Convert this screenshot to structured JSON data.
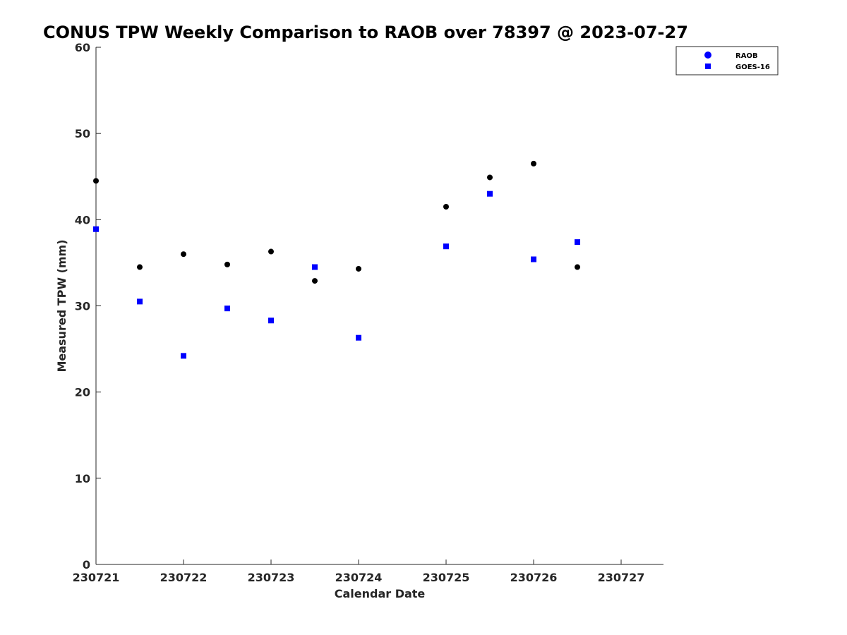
{
  "chart_data": {
    "type": "scatter",
    "title": "CONUS TPW Weekly Comparison to RAOB over 78397 @ 2023-07-27",
    "xlabel": "Calendar Date",
    "ylabel": "Measured TPW (mm)",
    "x_tick_labels": [
      "230721",
      "230722",
      "230723",
      "230724",
      "230725",
      "230726",
      "230727"
    ],
    "y_ticks": [
      0,
      10,
      20,
      30,
      40,
      50,
      60
    ],
    "xlim": [
      0,
      6.5
    ],
    "ylim": [
      0,
      60
    ],
    "grid": false,
    "legend_position": "top-right",
    "series": [
      {
        "name": "RAOB",
        "marker": "circle",
        "legend_color": "#0000ff",
        "color": "#000000",
        "points": [
          {
            "x": 0.0,
            "y": 44.5
          },
          {
            "x": 0.5,
            "y": 34.5
          },
          {
            "x": 1.0,
            "y": 36.0
          },
          {
            "x": 1.5,
            "y": 34.8
          },
          {
            "x": 2.0,
            "y": 36.3
          },
          {
            "x": 2.5,
            "y": 32.9
          },
          {
            "x": 3.0,
            "y": 34.3
          },
          {
            "x": 4.0,
            "y": 41.5
          },
          {
            "x": 4.5,
            "y": 44.9
          },
          {
            "x": 5.0,
            "y": 46.5
          },
          {
            "x": 5.5,
            "y": 34.5
          }
        ]
      },
      {
        "name": "GOES-16",
        "marker": "square",
        "legend_color": "#0000ff",
        "color": "#0000ff",
        "points": [
          {
            "x": 0.0,
            "y": 38.9
          },
          {
            "x": 0.5,
            "y": 30.5
          },
          {
            "x": 1.0,
            "y": 24.2
          },
          {
            "x": 1.5,
            "y": 29.7
          },
          {
            "x": 2.0,
            "y": 28.3
          },
          {
            "x": 2.5,
            "y": 34.5
          },
          {
            "x": 3.0,
            "y": 26.3
          },
          {
            "x": 4.0,
            "y": 36.9
          },
          {
            "x": 4.5,
            "y": 43.0
          },
          {
            "x": 5.0,
            "y": 35.4
          },
          {
            "x": 5.5,
            "y": 37.4
          }
        ]
      }
    ]
  }
}
